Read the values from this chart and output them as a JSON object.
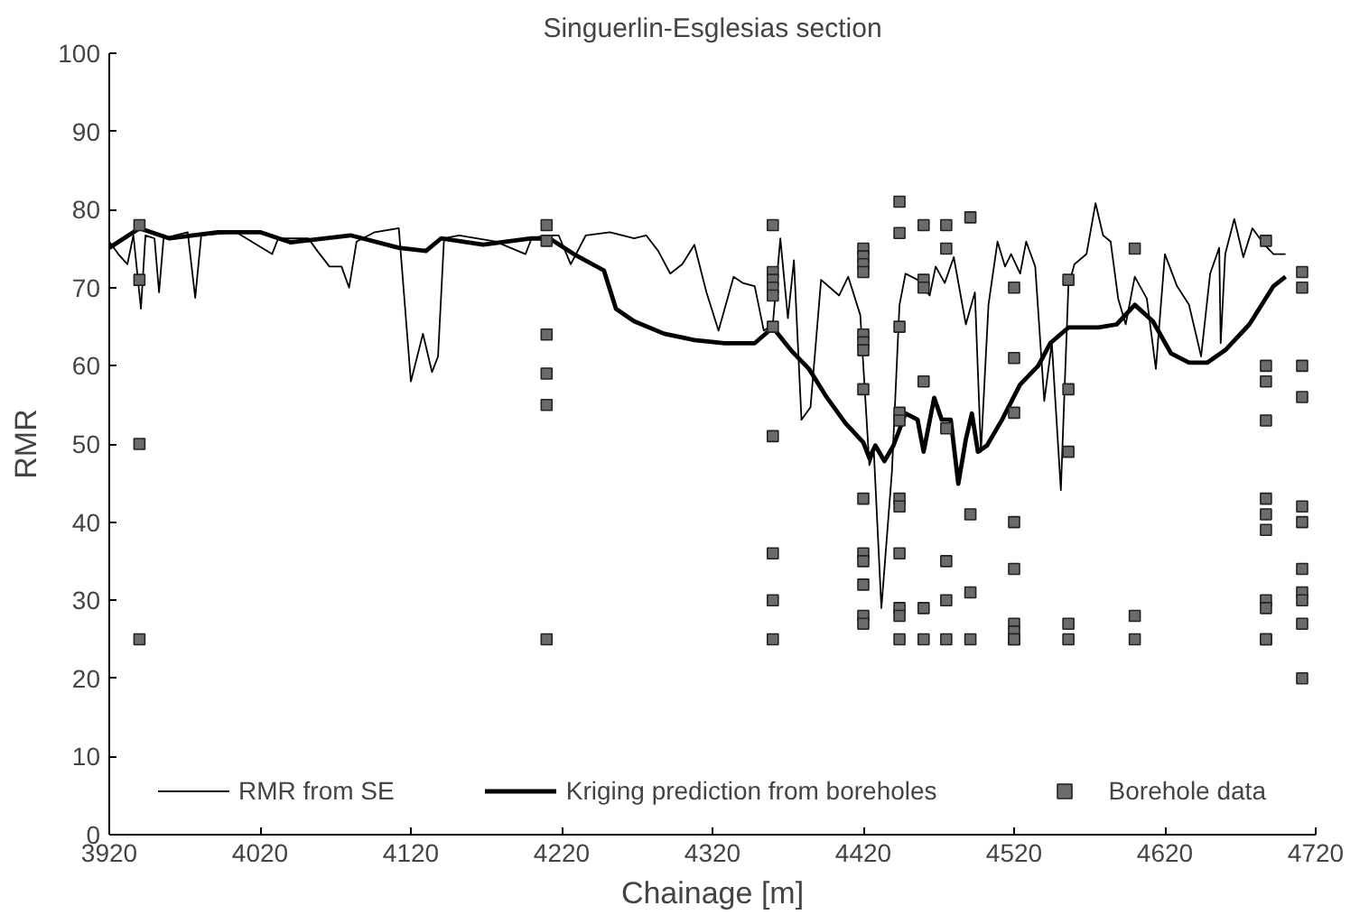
{
  "chart_data": {
    "type": "line",
    "title": "Singuerlin-Esglesias section",
    "xlabel": "Chainage [m]",
    "ylabel": "RMR",
    "xlim": [
      3920,
      4720
    ],
    "xticks": [
      3920,
      4020,
      4120,
      4220,
      4320,
      4420,
      4520,
      4620,
      4720
    ],
    "ylim": [
      0,
      100
    ],
    "yticks": [
      0,
      10,
      20,
      30,
      40,
      50,
      60,
      70,
      80,
      90,
      100
    ],
    "grid": false,
    "legend": "bottom",
    "series": [
      {
        "name": "RMR from SE",
        "color": "#000000",
        "line_style": "solid",
        "x": [
          3920,
          3926,
          3932,
          3936,
          3941,
          3944,
          3950,
          3953,
          3956,
          3972,
          3977,
          3981,
          4004,
          4028,
          4032,
          4052,
          4058,
          4066,
          4074,
          4079,
          4084,
          4096,
          4112,
          4120,
          4128,
          4134,
          4138,
          4142,
          4152,
          4176,
          4196,
          4200,
          4210,
          4218,
          4226,
          4236,
          4252,
          4268,
          4276,
          4284,
          4292,
          4300,
          4308,
          4316,
          4324,
          4334,
          4340,
          4348,
          4354,
          4360,
          4365,
          4370,
          4374,
          4379,
          4385,
          4392,
          4404,
          4410,
          4418,
          4424,
          4427,
          4432,
          4439,
          4444,
          4448,
          4456,
          4464,
          4468,
          4474,
          4480,
          4488,
          4494,
          4498,
          4503,
          4509,
          4514,
          4518,
          4524,
          4528,
          4534,
          4540,
          4545,
          4551,
          4556,
          4560,
          4568,
          4574,
          4579,
          4584,
          4589,
          4594,
          4600,
          4608,
          4614,
          4620,
          4628,
          4636,
          4644,
          4650,
          4656,
          4657,
          4660,
          4666,
          4672,
          4678,
          4686,
          4692,
          4700
        ],
        "values": [
          75.9,
          74.3,
          73,
          76.7,
          67.3,
          76.7,
          76.3,
          69.4,
          76.3,
          77.1,
          68.7,
          76.7,
          77.1,
          74.3,
          76.3,
          76.3,
          74.7,
          72.7,
          72.7,
          70,
          75.9,
          77.1,
          77.6,
          58,
          64.1,
          59.2,
          61.2,
          76.3,
          76.7,
          75.9,
          74.3,
          76.3,
          76.7,
          76.7,
          73,
          76.7,
          77.1,
          76.3,
          76.7,
          74.7,
          71.8,
          73,
          75.5,
          69.4,
          64.5,
          71.4,
          70.6,
          70.2,
          64.5,
          65.3,
          76.3,
          66.1,
          73.5,
          53.1,
          54.7,
          71,
          69,
          71.4,
          66.5,
          47.3,
          49,
          29,
          46.5,
          67.8,
          71.8,
          71,
          69,
          72.7,
          70.6,
          73.9,
          65.3,
          69.4,
          49,
          67.8,
          75.9,
          72.7,
          74.3,
          71.8,
          75.9,
          72.7,
          55.5,
          62.9,
          44.1,
          70.2,
          73,
          74.3,
          80.8,
          76.7,
          75.9,
          68.6,
          65.3,
          71.4,
          68.6,
          59.6,
          74.3,
          70.2,
          67.8,
          61.2,
          71.8,
          75.1,
          62.9,
          74.3,
          78.8,
          73.9,
          77.6,
          75.5,
          74.3,
          74.3
        ]
      },
      {
        "name": "Kriging prediction from boreholes",
        "color": "#000000",
        "line_style": "solid",
        "x": [
          3920,
          3940,
          3960,
          3992,
          4020,
          4040,
          4080,
          4112,
          4130,
          4140,
          4168,
          4200,
          4212,
          4228,
          4248,
          4256,
          4268,
          4288,
          4308,
          4328,
          4348,
          4360,
          4372,
          4384,
          4396,
          4408,
          4420,
          4424,
          4428,
          4434,
          4440,
          4448,
          4456,
          4460,
          4467,
          4472,
          4478,
          4483,
          4488,
          4492,
          4496,
          4502,
          4512,
          4524,
          4536,
          4544,
          4556,
          4576,
          4588,
          4600,
          4612,
          4624,
          4636,
          4648,
          4660,
          4676,
          4692,
          4700
        ],
        "values": [
          75.1,
          77.6,
          76.3,
          77.1,
          77.1,
          75.8,
          76.7,
          75.1,
          74.7,
          76.3,
          75.5,
          76.3,
          76.3,
          74.3,
          72.2,
          67.3,
          65.7,
          64.1,
          63.3,
          62.9,
          62.9,
          64.9,
          62,
          59.6,
          55.9,
          52.7,
          50.2,
          48.2,
          49.8,
          47.8,
          49.8,
          53.9,
          53.1,
          49,
          55.9,
          53.1,
          53.1,
          44.9,
          50.6,
          53.9,
          49,
          49.8,
          53.1,
          57.6,
          60,
          62.9,
          64.9,
          64.9,
          65.3,
          67.8,
          65.7,
          61.6,
          60.4,
          60.4,
          62,
          65.3,
          70.2,
          71.4
        ]
      },
      {
        "name": "Borehole data",
        "type": "scatter",
        "color": "#6b6b6b",
        "marker": "square",
        "x": [
          3940,
          3940,
          3940,
          3940,
          4210,
          4210,
          4210,
          4210,
          4210,
          4210,
          4360,
          4360,
          4360,
          4360,
          4360,
          4360,
          4360,
          4360,
          4360,
          4360,
          4420,
          4420,
          4420,
          4420,
          4420,
          4420,
          4420,
          4420,
          4420,
          4420,
          4420,
          4420,
          4420,
          4420,
          4444,
          4444,
          4444,
          4444,
          4444,
          4444,
          4444,
          4444,
          4444,
          4444,
          4444,
          4460,
          4460,
          4460,
          4460,
          4460,
          4460,
          4475,
          4475,
          4475,
          4475,
          4475,
          4475,
          4491,
          4491,
          4491,
          4491,
          4520,
          4520,
          4520,
          4520,
          4520,
          4520,
          4520,
          4520,
          4520,
          4556,
          4556,
          4556,
          4556,
          4556,
          4600,
          4600,
          4600,
          4687,
          4687,
          4687,
          4687,
          4687,
          4687,
          4687,
          4687,
          4687,
          4687,
          4687,
          4711,
          4711,
          4711,
          4711,
          4711,
          4711,
          4711,
          4711,
          4711,
          4711,
          4711
        ],
        "values": [
          78,
          71,
          50,
          25,
          78,
          76,
          64,
          59,
          55,
          25,
          78,
          72,
          71,
          70,
          69,
          65,
          51,
          36,
          30,
          25,
          75,
          74,
          73,
          72,
          64,
          63,
          62,
          57,
          43,
          36,
          35,
          32,
          28,
          27,
          81,
          77,
          65,
          54,
          53,
          43,
          42,
          36,
          29,
          28,
          25,
          78,
          71,
          70,
          58,
          29,
          25,
          78,
          75,
          52,
          35,
          30,
          25,
          79,
          41,
          31,
          25,
          70,
          61,
          54,
          40,
          34,
          27,
          26,
          25,
          25,
          71,
          57,
          49,
          27,
          25,
          75,
          28,
          25,
          76,
          60,
          58,
          53,
          43,
          41,
          39,
          30,
          29,
          25,
          25,
          72,
          70,
          60,
          56,
          42,
          40,
          34,
          31,
          30,
          27,
          20
        ]
      }
    ]
  }
}
